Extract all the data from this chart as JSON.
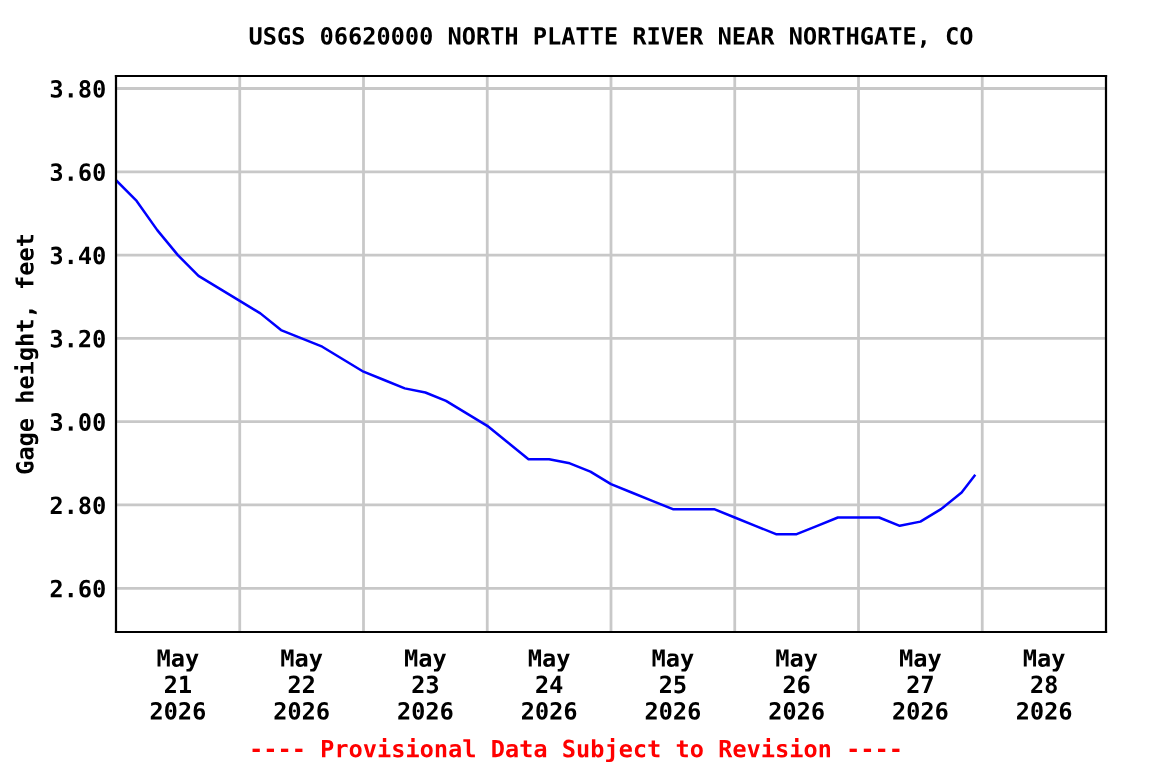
{
  "chart_data": {
    "type": "line",
    "title": "USGS 06620000 NORTH PLATTE RIVER NEAR NORTHGATE, CO",
    "ylabel": "Gage height, feet",
    "annotations": [
      "---- Provisional Data Subject to Revision ----"
    ],
    "x": [
      "2026-05-21T00:00",
      "2026-05-21T04:00",
      "2026-05-21T08:00",
      "2026-05-21T12:00",
      "2026-05-21T16:00",
      "2026-05-21T20:00",
      "2026-05-22T00:00",
      "2026-05-22T04:00",
      "2026-05-22T08:00",
      "2026-05-22T12:00",
      "2026-05-22T16:00",
      "2026-05-22T20:00",
      "2026-05-23T00:00",
      "2026-05-23T04:00",
      "2026-05-23T08:00",
      "2026-05-23T12:00",
      "2026-05-23T16:00",
      "2026-05-23T20:00",
      "2026-05-24T00:00",
      "2026-05-24T04:00",
      "2026-05-24T08:00",
      "2026-05-24T12:00",
      "2026-05-24T16:00",
      "2026-05-24T20:00",
      "2026-05-25T00:00",
      "2026-05-25T04:00",
      "2026-05-25T08:00",
      "2026-05-25T12:00",
      "2026-05-25T16:00",
      "2026-05-25T20:00",
      "2026-05-26T00:00",
      "2026-05-26T04:00",
      "2026-05-26T08:00",
      "2026-05-26T12:00",
      "2026-05-26T16:00",
      "2026-05-26T20:00",
      "2026-05-27T00:00",
      "2026-05-27T04:00",
      "2026-05-27T08:00",
      "2026-05-27T12:00",
      "2026-05-27T16:00",
      "2026-05-27T20:00",
      "2026-05-27T22:30"
    ],
    "series": [
      {
        "color": "#0000ff",
        "values": [
          3.58,
          3.53,
          3.46,
          3.4,
          3.35,
          3.32,
          3.29,
          3.26,
          3.22,
          3.2,
          3.18,
          3.15,
          3.12,
          3.1,
          3.08,
          3.07,
          3.05,
          3.02,
          2.99,
          2.95,
          2.91,
          2.91,
          2.9,
          2.88,
          2.85,
          2.83,
          2.81,
          2.79,
          2.79,
          2.79,
          2.77,
          2.75,
          2.73,
          2.73,
          2.75,
          2.77,
          2.77,
          2.77,
          2.75,
          2.76,
          2.79,
          2.83,
          2.87
        ]
      }
    ],
    "xlim": [
      "2026-05-21T00:00",
      "2026-05-29T00:00"
    ],
    "xticks": [
      {
        "value": "2026-05-21T12:00",
        "label": "May\n21\n2026"
      },
      {
        "value": "2026-05-22T12:00",
        "label": "May\n22\n2026"
      },
      {
        "value": "2026-05-23T12:00",
        "label": "May\n23\n2026"
      },
      {
        "value": "2026-05-24T12:00",
        "label": "May\n24\n2026"
      },
      {
        "value": "2026-05-25T12:00",
        "label": "May\n25\n2026"
      },
      {
        "value": "2026-05-26T12:00",
        "label": "May\n26\n2026"
      },
      {
        "value": "2026-05-27T12:00",
        "label": "May\n27\n2026"
      },
      {
        "value": "2026-05-28T12:00",
        "label": "May\n28\n2026"
      },
      {
        "value": "2026-05-22T00:00",
        "label": null
      },
      {
        "value": "2026-05-23T00:00",
        "label": null
      },
      {
        "value": "2026-05-24T00:00",
        "label": null
      },
      {
        "value": "2026-05-25T00:00",
        "label": null
      },
      {
        "value": "2026-05-26T00:00",
        "label": null
      },
      {
        "value": "2026-05-27T00:00",
        "label": null
      },
      {
        "value": "2026-05-28T00:00",
        "label": null
      }
    ],
    "ylim": [
      2.495,
      3.83
    ],
    "yticks": [
      {
        "value": 2.6,
        "label": "2.60"
      },
      {
        "value": 2.8,
        "label": "2.80"
      },
      {
        "value": 3.0,
        "label": "3.00"
      },
      {
        "value": 3.2,
        "label": "3.20"
      },
      {
        "value": 3.4,
        "label": "3.40"
      },
      {
        "value": 3.6,
        "label": "3.60"
      },
      {
        "value": 3.8,
        "label": "3.80"
      }
    ],
    "grid": true,
    "legend": false,
    "line_style": "solid",
    "marker": "none"
  }
}
